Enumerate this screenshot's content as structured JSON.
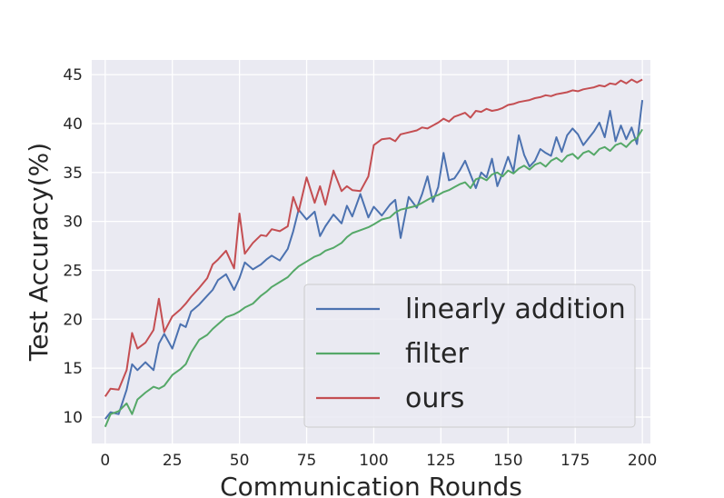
{
  "chart_data": {
    "type": "line",
    "xlabel": "Communication Rounds",
    "ylabel": "Test Accuracy(%)",
    "xlim": [
      -5,
      203
    ],
    "ylim": [
      7.3,
      46.5
    ],
    "xticks": [
      0,
      25,
      50,
      75,
      100,
      125,
      150,
      175,
      200
    ],
    "yticks": [
      10,
      15,
      20,
      25,
      30,
      35,
      40,
      45
    ],
    "grid": true,
    "legend_position": "lower-right",
    "series": [
      {
        "name": "linearly addition",
        "color": "#4c72b0",
        "x": [
          0,
          2,
          5,
          8,
          10,
          12,
          15,
          18,
          20,
          22,
          25,
          28,
          30,
          32,
          35,
          38,
          40,
          42,
          45,
          48,
          50,
          52,
          55,
          58,
          60,
          62,
          65,
          68,
          70,
          72,
          75,
          78,
          80,
          82,
          85,
          88,
          90,
          92,
          95,
          98,
          100,
          103,
          106,
          108,
          110,
          113,
          116,
          118,
          120,
          122,
          124,
          126,
          128,
          130,
          132,
          134,
          136,
          138,
          140,
          142,
          144,
          146,
          148,
          150,
          152,
          154,
          156,
          158,
          160,
          162,
          164,
          166,
          168,
          170,
          172,
          174,
          176,
          178,
          180,
          182,
          184,
          186,
          188,
          190,
          192,
          194,
          196,
          198,
          200
        ],
        "y": [
          9.8,
          10.5,
          10.3,
          12.8,
          15.4,
          14.8,
          15.6,
          14.8,
          17.5,
          18.5,
          17.0,
          19.5,
          19.2,
          20.8,
          21.5,
          22.4,
          23.0,
          24.0,
          24.6,
          23.0,
          24.2,
          25.8,
          25.1,
          25.6,
          26.1,
          26.5,
          26.0,
          27.2,
          29.0,
          31.2,
          30.2,
          31.0,
          28.5,
          29.5,
          30.7,
          29.8,
          31.6,
          30.5,
          32.8,
          30.4,
          31.5,
          30.6,
          31.7,
          32.2,
          28.3,
          32.5,
          31.4,
          32.8,
          34.6,
          32.0,
          33.5,
          37.0,
          34.2,
          34.4,
          35.2,
          36.2,
          34.8,
          33.4,
          35.0,
          34.5,
          36.4,
          33.6,
          35.0,
          36.6,
          35.1,
          38.8,
          36.8,
          35.6,
          36.2,
          37.4,
          37.0,
          36.7,
          38.6,
          37.1,
          38.8,
          39.5,
          38.9,
          37.8,
          38.5,
          39.2,
          40.1,
          38.6,
          41.3,
          38.2,
          39.8,
          38.4,
          39.6,
          37.9,
          42.4
        ]
      },
      {
        "name": "filter",
        "color": "#55a868",
        "x": [
          0,
          2,
          5,
          8,
          10,
          12,
          15,
          18,
          20,
          22,
          25,
          28,
          30,
          32,
          35,
          38,
          40,
          42,
          45,
          48,
          50,
          52,
          55,
          58,
          60,
          62,
          65,
          68,
          70,
          72,
          75,
          78,
          80,
          82,
          85,
          88,
          90,
          92,
          95,
          98,
          100,
          103,
          106,
          108,
          110,
          113,
          116,
          118,
          120,
          122,
          124,
          126,
          128,
          130,
          132,
          134,
          136,
          138,
          140,
          142,
          144,
          146,
          148,
          150,
          152,
          154,
          156,
          158,
          160,
          162,
          164,
          166,
          168,
          170,
          172,
          174,
          176,
          178,
          180,
          182,
          184,
          186,
          188,
          190,
          192,
          194,
          196,
          198,
          200
        ],
        "y": [
          9.0,
          10.3,
          10.6,
          11.4,
          10.3,
          11.8,
          12.5,
          13.1,
          12.9,
          13.2,
          14.3,
          14.9,
          15.4,
          16.6,
          17.9,
          18.4,
          19.0,
          19.5,
          20.2,
          20.5,
          20.8,
          21.2,
          21.6,
          22.4,
          22.8,
          23.3,
          23.8,
          24.3,
          24.9,
          25.4,
          25.9,
          26.4,
          26.6,
          27.0,
          27.3,
          27.8,
          28.4,
          28.8,
          29.1,
          29.4,
          29.7,
          30.2,
          30.4,
          30.9,
          31.2,
          31.4,
          31.6,
          31.9,
          32.2,
          32.5,
          32.7,
          33.0,
          33.2,
          33.5,
          33.8,
          34.0,
          33.4,
          34.3,
          34.5,
          34.2,
          34.8,
          35.0,
          34.6,
          35.2,
          34.9,
          35.4,
          35.7,
          35.3,
          35.8,
          36.0,
          35.6,
          36.2,
          36.5,
          36.1,
          36.7,
          36.9,
          36.4,
          37.0,
          37.2,
          36.8,
          37.4,
          37.6,
          37.2,
          37.8,
          38.0,
          37.6,
          38.2,
          38.5,
          39.4
        ]
      },
      {
        "name": "ours",
        "color": "#c44e52",
        "x": [
          0,
          2,
          5,
          8,
          10,
          12,
          15,
          18,
          20,
          22,
          25,
          28,
          30,
          32,
          35,
          38,
          40,
          42,
          45,
          48,
          50,
          52,
          55,
          58,
          60,
          62,
          65,
          68,
          70,
          72,
          75,
          78,
          80,
          82,
          85,
          88,
          90,
          92,
          95,
          98,
          100,
          103,
          106,
          108,
          110,
          113,
          116,
          118,
          120,
          122,
          124,
          126,
          128,
          130,
          132,
          134,
          136,
          138,
          140,
          142,
          144,
          146,
          148,
          150,
          152,
          154,
          156,
          158,
          160,
          162,
          164,
          166,
          168,
          170,
          172,
          174,
          176,
          178,
          180,
          182,
          184,
          186,
          188,
          190,
          192,
          194,
          196,
          198,
          200
        ],
        "y": [
          12.1,
          12.9,
          12.8,
          14.8,
          18.6,
          17.0,
          17.6,
          18.9,
          22.1,
          18.7,
          20.3,
          21.0,
          21.6,
          22.3,
          23.2,
          24.2,
          25.6,
          26.1,
          27.0,
          25.2,
          30.8,
          26.7,
          27.8,
          28.6,
          28.5,
          29.2,
          29.0,
          29.5,
          32.5,
          31.0,
          34.5,
          31.9,
          33.6,
          31.7,
          35.2,
          33.1,
          33.6,
          33.2,
          33.1,
          34.6,
          37.8,
          38.4,
          38.5,
          38.2,
          38.9,
          39.1,
          39.3,
          39.6,
          39.5,
          39.8,
          40.1,
          40.5,
          40.2,
          40.7,
          40.9,
          41.1,
          40.6,
          41.3,
          41.2,
          41.5,
          41.3,
          41.4,
          41.6,
          41.9,
          42.0,
          42.2,
          42.3,
          42.4,
          42.6,
          42.7,
          42.9,
          42.8,
          43.0,
          43.1,
          43.2,
          43.4,
          43.3,
          43.5,
          43.6,
          43.7,
          43.9,
          43.8,
          44.1,
          44.0,
          44.4,
          44.1,
          44.5,
          44.2,
          44.5
        ]
      }
    ]
  }
}
